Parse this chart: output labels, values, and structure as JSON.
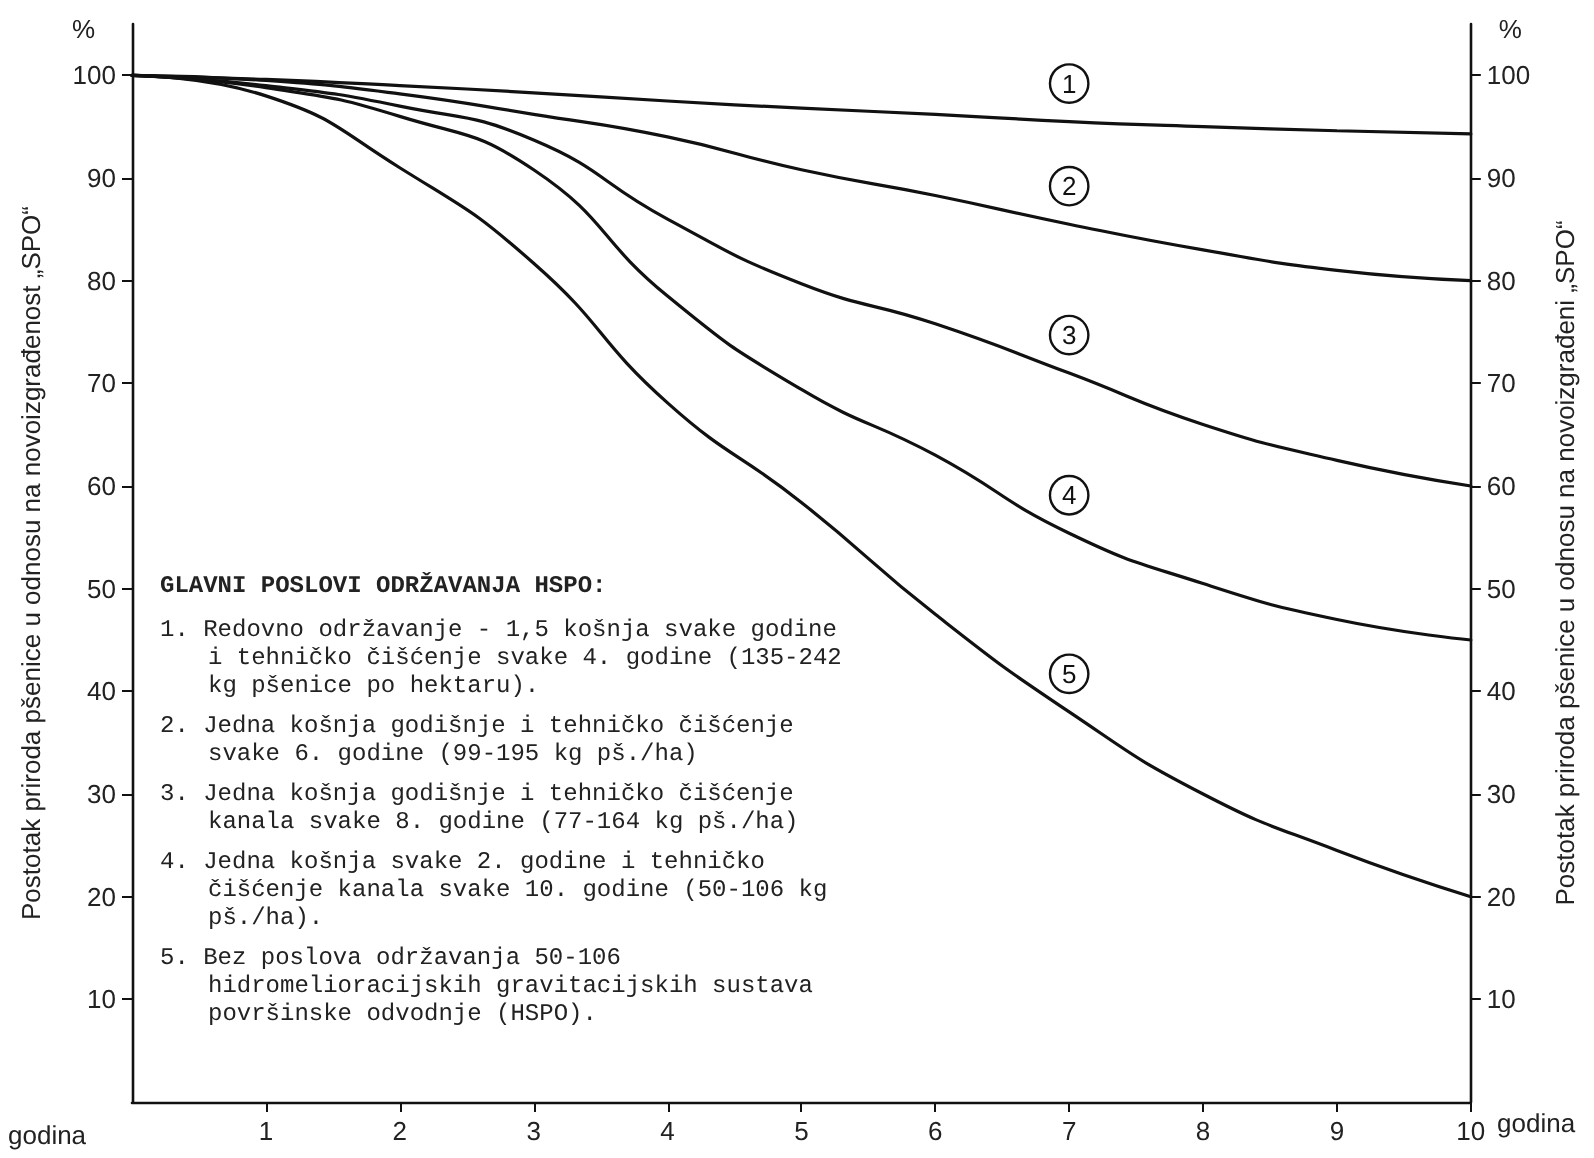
{
  "chart_data": {
    "type": "line",
    "xlabel": "godina",
    "ylabel": "Postotak priroda pšenice u odnosu na novoizgrađenost „SPO“",
    "y2label": "Postotak priroda pšenice u odnosu na novoizgrađeni „SPO“",
    "x": [
      0,
      1,
      2,
      3,
      4,
      5,
      6,
      7,
      8,
      9,
      10
    ],
    "series": [
      {
        "name": "1",
        "color": "#111111",
        "values": [
          100,
          99.6,
          99,
          98.3,
          97.5,
          96.8,
          96.2,
          95.5,
          95,
          94.6,
          94.3
        ]
      },
      {
        "name": "2",
        "color": "#111111",
        "values": [
          100,
          99.5,
          98.2,
          96.2,
          94,
          90.8,
          88.3,
          85.5,
          83,
          81,
          80
        ]
      },
      {
        "name": "3",
        "color": "#111111",
        "values": [
          100,
          99,
          97,
          93.7,
          86,
          79.7,
          75.8,
          71,
          66,
          62.5,
          60
        ]
      },
      {
        "name": "4",
        "color": "#111111",
        "values": [
          100,
          98.8,
          96,
          90.8,
          78.5,
          69.4,
          63,
          55.4,
          50.5,
          47,
          45
        ]
      },
      {
        "name": "5",
        "color": "#111111",
        "values": [
          100,
          98,
          91,
          81.7,
          68.1,
          58.4,
          47.5,
          38,
          30,
          24.5,
          20
        ]
      }
    ],
    "xlim": [
      0,
      10
    ],
    "xticks": [
      1,
      2,
      3,
      4,
      5,
      6,
      7,
      8,
      9,
      10
    ],
    "ylim": [
      0,
      105
    ],
    "yticks": [
      10,
      20,
      30,
      40,
      50,
      60,
      70,
      80,
      90,
      100
    ],
    "y2lim": [
      0,
      105
    ],
    "y2ticks": [
      10,
      20,
      30,
      40,
      50,
      60,
      70,
      80,
      90,
      100
    ],
    "grid": false,
    "marker": "none",
    "line_style": "solid",
    "annotations": [
      "%",
      "%",
      "godina",
      "GLAVNI POSLOVI ODRŽAVANJA HSPO:",
      "1. Redovno održavanje - 1,5 košnja svake godine i tehničko čišćenje svake 4. godine (135-242 kg pšenice po hektaru).",
      "2. Jedna košnja godišnje i tehničko čišćenje svake 6. godine (99-195 kg pš./ha)",
      "3. Jedna košnja godišnje i tehničko čišćenje kanala svake 8. godine (77-164 kg pš./ha)",
      "4. Jedna košnja svake 2. godine i tehničko čišćenje kanala svake 10. godine (50-106 kg pš./ha).",
      "5. Bez poslova održavanja 50-106 hidromelioracijskih gravitacijskih sustava površinske odvodnje (HSPO)."
    ]
  }
}
